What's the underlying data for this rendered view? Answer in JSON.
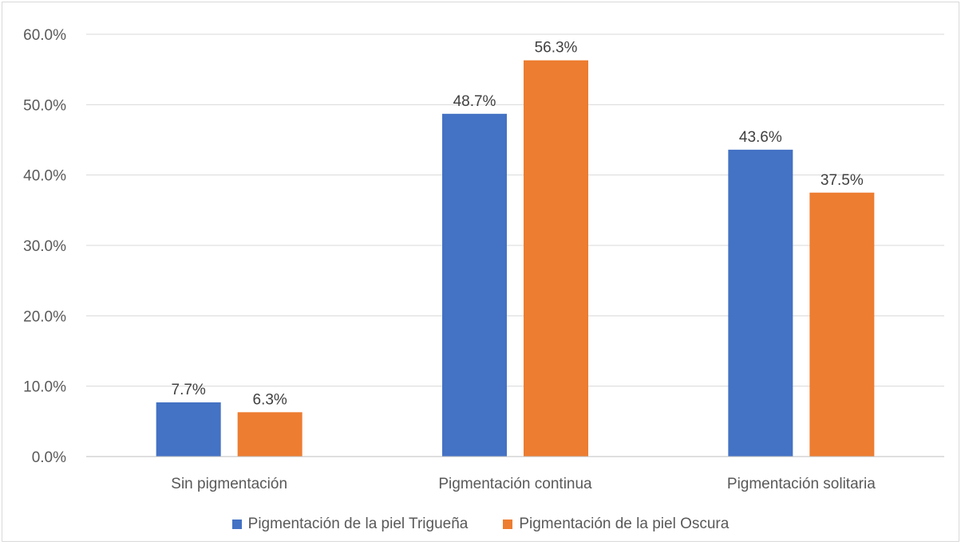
{
  "chart_data": {
    "type": "bar",
    "categories": [
      "Sin pigmentación",
      "Pigmentación continua",
      "Pigmentación solitaria"
    ],
    "series": [
      {
        "name": "Pigmentación de la piel Trigueña",
        "values": [
          7.7,
          48.7,
          43.6
        ],
        "color": "#4472C4"
      },
      {
        "name": "Pigmentación de la piel Oscura",
        "values": [
          6.3,
          56.3,
          37.5
        ],
        "color": "#ED7D31"
      }
    ],
    "ylim": [
      0,
      60
    ],
    "yticks": [
      0,
      10,
      20,
      30,
      40,
      50,
      60
    ],
    "ytick_labels": [
      "0.0%",
      "10.0%",
      "20.0%",
      "30.0%",
      "40.0%",
      "50.0%",
      "60.0%"
    ],
    "data_labels": [
      [
        "7.7%",
        "48.7%",
        "43.6%"
      ],
      [
        "6.3%",
        "56.3%",
        "37.5%"
      ]
    ],
    "grid": true,
    "legend_position": "bottom"
  }
}
